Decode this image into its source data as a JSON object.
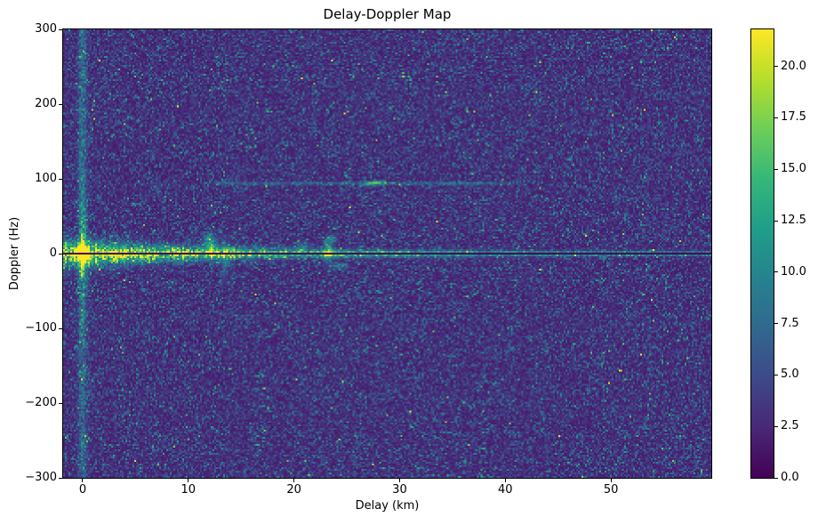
{
  "figure": {
    "title": "Delay-Doppler Map"
  },
  "axes": {
    "xlabel": "Delay (km)",
    "ylabel": "Doppler (Hz)",
    "xticks": [
      {
        "value": 0,
        "label": "0"
      },
      {
        "value": 10,
        "label": "10"
      },
      {
        "value": 20,
        "label": "20"
      },
      {
        "value": 30,
        "label": "30"
      },
      {
        "value": 40,
        "label": "40"
      },
      {
        "value": 50,
        "label": "50"
      }
    ],
    "yticks": [
      {
        "value": 300,
        "label": "300"
      },
      {
        "value": 200,
        "label": "200"
      },
      {
        "value": 100,
        "label": "100"
      },
      {
        "value": 0,
        "label": "0"
      },
      {
        "value": -100,
        "label": "−100"
      },
      {
        "value": -200,
        "label": "−200"
      },
      {
        "value": -300,
        "label": "−300"
      }
    ]
  },
  "colorbar": {
    "vmin": 0.0,
    "vmax": 21.8,
    "colormap": "viridis",
    "stops": [
      "#440154",
      "#482878",
      "#3e4989",
      "#31688e",
      "#26828e",
      "#1f9e89",
      "#35b779",
      "#6ece58",
      "#b5de2b",
      "#fde725"
    ],
    "ticks": [
      {
        "value": 0.0,
        "label": "0.0"
      },
      {
        "value": 2.5,
        "label": "2.5"
      },
      {
        "value": 5.0,
        "label": "5.0"
      },
      {
        "value": 7.5,
        "label": "7.5"
      },
      {
        "value": 10.0,
        "label": "10.0"
      },
      {
        "value": 12.5,
        "label": "12.5"
      },
      {
        "value": 15.0,
        "label": "15.0"
      },
      {
        "value": 17.5,
        "label": "17.5"
      },
      {
        "value": 20.0,
        "label": "20.0"
      }
    ]
  },
  "chart_data": {
    "type": "heatmap",
    "title": "Delay-Doppler Map",
    "xlabel": "Delay (km)",
    "ylabel": "Doppler (Hz)",
    "xlim": [
      -1.85,
      59.5
    ],
    "ylim": [
      -300,
      300
    ],
    "xticks": [
      0,
      10,
      20,
      30,
      40,
      50
    ],
    "yticks": [
      300,
      200,
      100,
      0,
      -100,
      -200,
      -300
    ],
    "colormap": "viridis",
    "vmin": 0.0,
    "vmax": 21.8,
    "colorbar_ticks": [
      0.0,
      2.5,
      5.0,
      7.5,
      10.0,
      12.5,
      15.0,
      17.5,
      20.0
    ],
    "grid": false,
    "features_described": [
      "strong saturated direct-path return at 0 km delay, 0 Hz Doppler",
      "thin black zero-Doppler notch line across all delays",
      "bright zero-Doppler clutter ridge, widest and greenest from 0-13 km, narrowing with range but persisting to the right edge",
      "speckled vertical stripe spanning all Dopplers at 0 km delay",
      "faint teal target streak near +95 Hz Doppler from about 12 km to 41 km delay",
      "brighter slightly tilted target echo near 27.5 km delay at about 91-97 Hz Doppler",
      "clutter clumps near 12.1 km, 13.4 km, 20.8 km, 23.3 km, 23.7 km and 24.3 km delay around the zero-Doppler band",
      "dark blue-purple speckle noise background, mean level about 4 of 21.8"
    ],
    "signal_model": {
      "noise_seed": 42,
      "background": {
        "base": 1.5,
        "exp_scale": 2.2
      },
      "clutter_band": {
        "amp_base": 3.5,
        "amp_peak": 12.0,
        "amp_decay_km": 28,
        "sigma_base_hz": 2.0,
        "sigma_peak_hz": 9.0,
        "sigma_decay_km": 15
      },
      "zero_line_thin": {
        "amp": 5.5,
        "sigma_hz": 1.6
      },
      "black_line": {
        "half_width_hz": 1.2
      },
      "direct_path": {
        "delay_km": 0,
        "doppler_hz": 0,
        "amp": 40,
        "sigma_d_km": 0.3,
        "sigma_f_hz": 5
      },
      "zero_delay_stripe": {
        "amp_min": 1.5,
        "amp_rand": 5.5,
        "sigma_km": 0.28
      },
      "target_line": {
        "doppler_hz": 94,
        "d_start_km": 11.6,
        "d_end_km": 41.5,
        "amp": 4.6,
        "sigma_hz": 1.4
      },
      "target": {
        "delay_km": 27.45,
        "d_range": [
          26.2,
          28.7
        ],
        "doppler_hz_start": 91,
        "doppler_slope_hz_per_km": 2.6,
        "amp": 10,
        "sigma_d_km": 0.8,
        "sigma_f_hz": 1.7
      },
      "features": [
        {
          "d": 12.1,
          "f": 12,
          "sd": 0.45,
          "sf": 8.0,
          "amp": 8.0
        },
        {
          "d": 11.9,
          "f": 22,
          "sd": 0.3,
          "sf": 4.0,
          "amp": 5.0
        },
        {
          "d": 13.4,
          "f": -4,
          "sd": 0.3,
          "sf": 16.0,
          "amp": 5.0
        },
        {
          "d": 20.8,
          "f": 9,
          "sd": 0.5,
          "sf": 5.0,
          "amp": 4.0
        },
        {
          "d": 23.3,
          "f": 4,
          "sd": 0.28,
          "sf": 10.0,
          "amp": 9.0
        },
        {
          "d": 23.7,
          "f": 20,
          "sd": 0.3,
          "sf": 3.5,
          "amp": 6.0
        },
        {
          "d": 24.3,
          "f": -17,
          "sd": 0.5,
          "sf": 3.0,
          "amp": 4.5
        }
      ]
    }
  }
}
